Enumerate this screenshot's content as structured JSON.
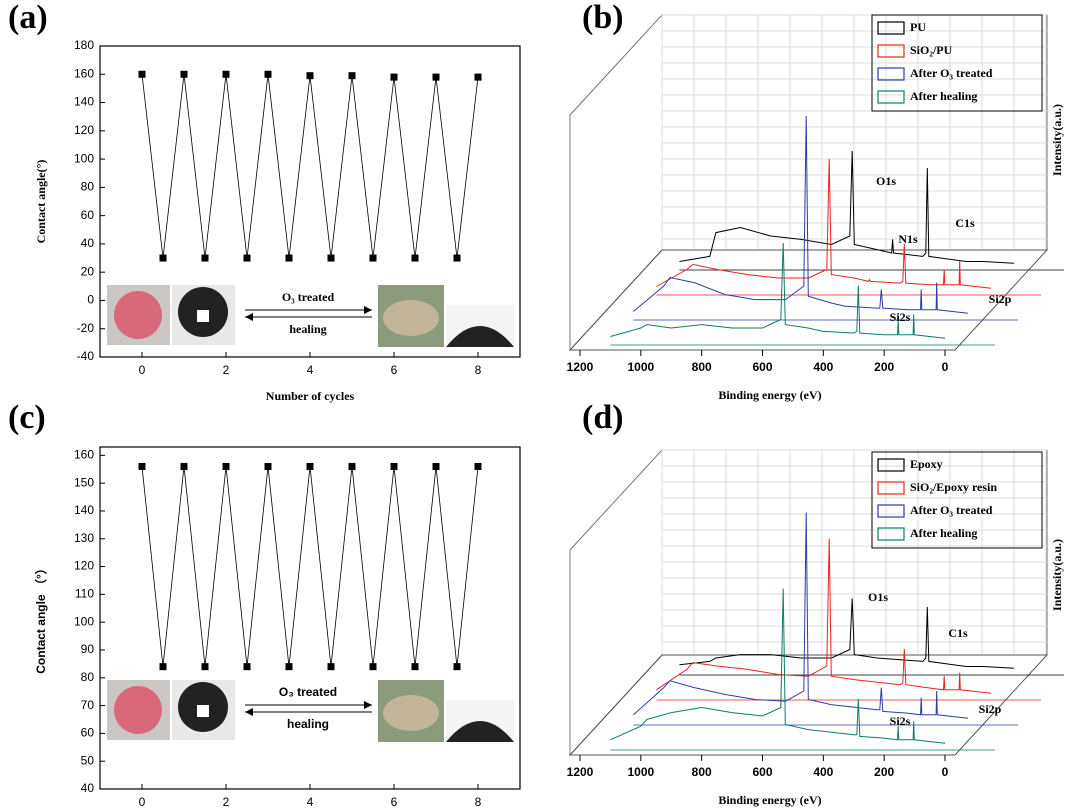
{
  "chart_data": [
    {
      "type": "line",
      "label": "(a)",
      "xlabel": "Number of cycles",
      "ylabel": "Contact angle(°)",
      "font": "serif",
      "x": [
        0,
        0.5,
        1,
        1.5,
        2,
        2.5,
        3,
        3.5,
        4,
        4.5,
        5,
        5.5,
        6,
        6.5,
        7,
        7.5,
        8
      ],
      "values": [
        160,
        30,
        160,
        30,
        160,
        30,
        160,
        30,
        159,
        30,
        159,
        30,
        158,
        30,
        158,
        30,
        158
      ],
      "color": "#000000",
      "xlim": [
        -1,
        9
      ],
      "ylim": [
        -40,
        180
      ],
      "xticks": [
        0,
        2,
        4,
        6,
        8
      ],
      "yticks": [
        -40,
        -20,
        0,
        20,
        40,
        60,
        80,
        100,
        120,
        140,
        160,
        180
      ],
      "annotations": [
        "O₃ treated",
        "healing"
      ]
    },
    {
      "type": "waterfall",
      "label": "(b)",
      "xlabel": "Binding energy (eV)",
      "zlabel": "Intensity(a.u.)",
      "xlim": [
        1200,
        0
      ],
      "xticks": [
        1200,
        1000,
        800,
        600,
        400,
        200,
        0
      ],
      "x": [
        1100,
        1000,
        980,
        900,
        800,
        700,
        600,
        540,
        532,
        525,
        450,
        402,
        399,
        396,
        300,
        290,
        285,
        280,
        200,
        156,
        154,
        152,
        105,
        103,
        101,
        0
      ],
      "series": [
        {
          "name": "PU",
          "color": "#000000",
          "values": [
            5,
            8,
            22,
            25,
            20,
            18,
            15,
            20,
            70,
            15,
            12,
            10,
            18,
            10,
            8,
            10,
            60,
            8,
            6,
            5,
            5,
            5,
            5,
            5,
            5,
            4
          ]
        },
        {
          "name": "SiO₂/PU",
          "color": "#e8241c",
          "values": [
            5,
            15,
            18,
            15,
            12,
            10,
            10,
            15,
            80,
            12,
            10,
            8,
            9,
            8,
            7,
            8,
            30,
            7,
            6,
            6,
            15,
            6,
            6,
            20,
            6,
            4
          ]
        },
        {
          "name": "After O₃ treated",
          "color": "#2b3ea8",
          "values": [
            5,
            20,
            25,
            22,
            15,
            12,
            12,
            20,
            120,
            14,
            10,
            8,
            8,
            8,
            7,
            7,
            18,
            7,
            6,
            6,
            18,
            6,
            6,
            22,
            6,
            4
          ]
        },
        {
          "name": "After healing",
          "color": "#0f7a6e",
          "values": [
            5,
            10,
            12,
            10,
            12,
            10,
            10,
            15,
            60,
            12,
            10,
            8,
            8,
            8,
            7,
            8,
            35,
            7,
            6,
            6,
            14,
            6,
            6,
            18,
            6,
            4
          ]
        }
      ],
      "annotations": [
        "O1s",
        "C1s",
        "N1s",
        "Si2p",
        "Si2s"
      ]
    },
    {
      "type": "line",
      "label": "(c)",
      "xlabel": "Number of cycles",
      "ylabel": "Contact angle （°）",
      "font": "sans",
      "x": [
        0,
        0.5,
        1,
        1.5,
        2,
        2.5,
        3,
        3.5,
        4,
        4.5,
        5,
        5.5,
        6,
        6.5,
        7,
        7.5,
        8
      ],
      "values": [
        156,
        84,
        156,
        84,
        156,
        84,
        156,
        84,
        156,
        84,
        156,
        84,
        156,
        84,
        156,
        84,
        156
      ],
      "color": "#000000",
      "xlim": [
        -1,
        9
      ],
      "ylim": [
        40,
        163
      ],
      "xticks": [
        0,
        2,
        4,
        6,
        8
      ],
      "yticks": [
        40,
        50,
        60,
        70,
        80,
        90,
        100,
        110,
        120,
        130,
        140,
        150,
        160
      ],
      "annotations": [
        "O₃ treated",
        "healing"
      ]
    },
    {
      "type": "waterfall",
      "label": "(d)",
      "xlabel": "Binding energy (eV)",
      "zlabel": "Intensity(a.u.)",
      "xlim": [
        1200,
        0
      ],
      "xticks": [
        1200,
        1000,
        800,
        600,
        400,
        200,
        0
      ],
      "x": [
        1100,
        1000,
        980,
        900,
        800,
        700,
        600,
        540,
        532,
        525,
        450,
        300,
        290,
        285,
        280,
        200,
        156,
        154,
        152,
        105,
        103,
        101,
        0
      ],
      "series": [
        {
          "name": "Epoxy",
          "color": "#000000",
          "values": [
            6,
            8,
            10,
            12,
            12,
            10,
            10,
            15,
            45,
            12,
            10,
            8,
            10,
            40,
            8,
            6,
            5,
            5,
            5,
            5,
            5,
            5,
            4
          ]
        },
        {
          "name": "SiO₂/Epoxy resin",
          "color": "#e8241c",
          "values": [
            6,
            18,
            22,
            20,
            18,
            15,
            14,
            20,
            95,
            14,
            12,
            9,
            10,
            30,
            9,
            7,
            6,
            14,
            6,
            6,
            16,
            6,
            4
          ]
        },
        {
          "name": "After O₃ treated",
          "color": "#2b3ea8",
          "values": [
            6,
            22,
            26,
            22,
            18,
            15,
            14,
            20,
            125,
            15,
            12,
            9,
            9,
            22,
            8,
            7,
            6,
            16,
            6,
            6,
            20,
            6,
            4
          ]
        },
        {
          "name": "After healing",
          "color": "#0f7a6e",
          "values": [
            6,
            14,
            18,
            22,
            25,
            22,
            20,
            25,
            95,
            15,
            12,
            9,
            9,
            30,
            8,
            7,
            6,
            14,
            6,
            6,
            17,
            6,
            4
          ]
        }
      ],
      "annotations": [
        "O1s",
        "C1s",
        "Si2p",
        "Si2s"
      ]
    }
  ]
}
